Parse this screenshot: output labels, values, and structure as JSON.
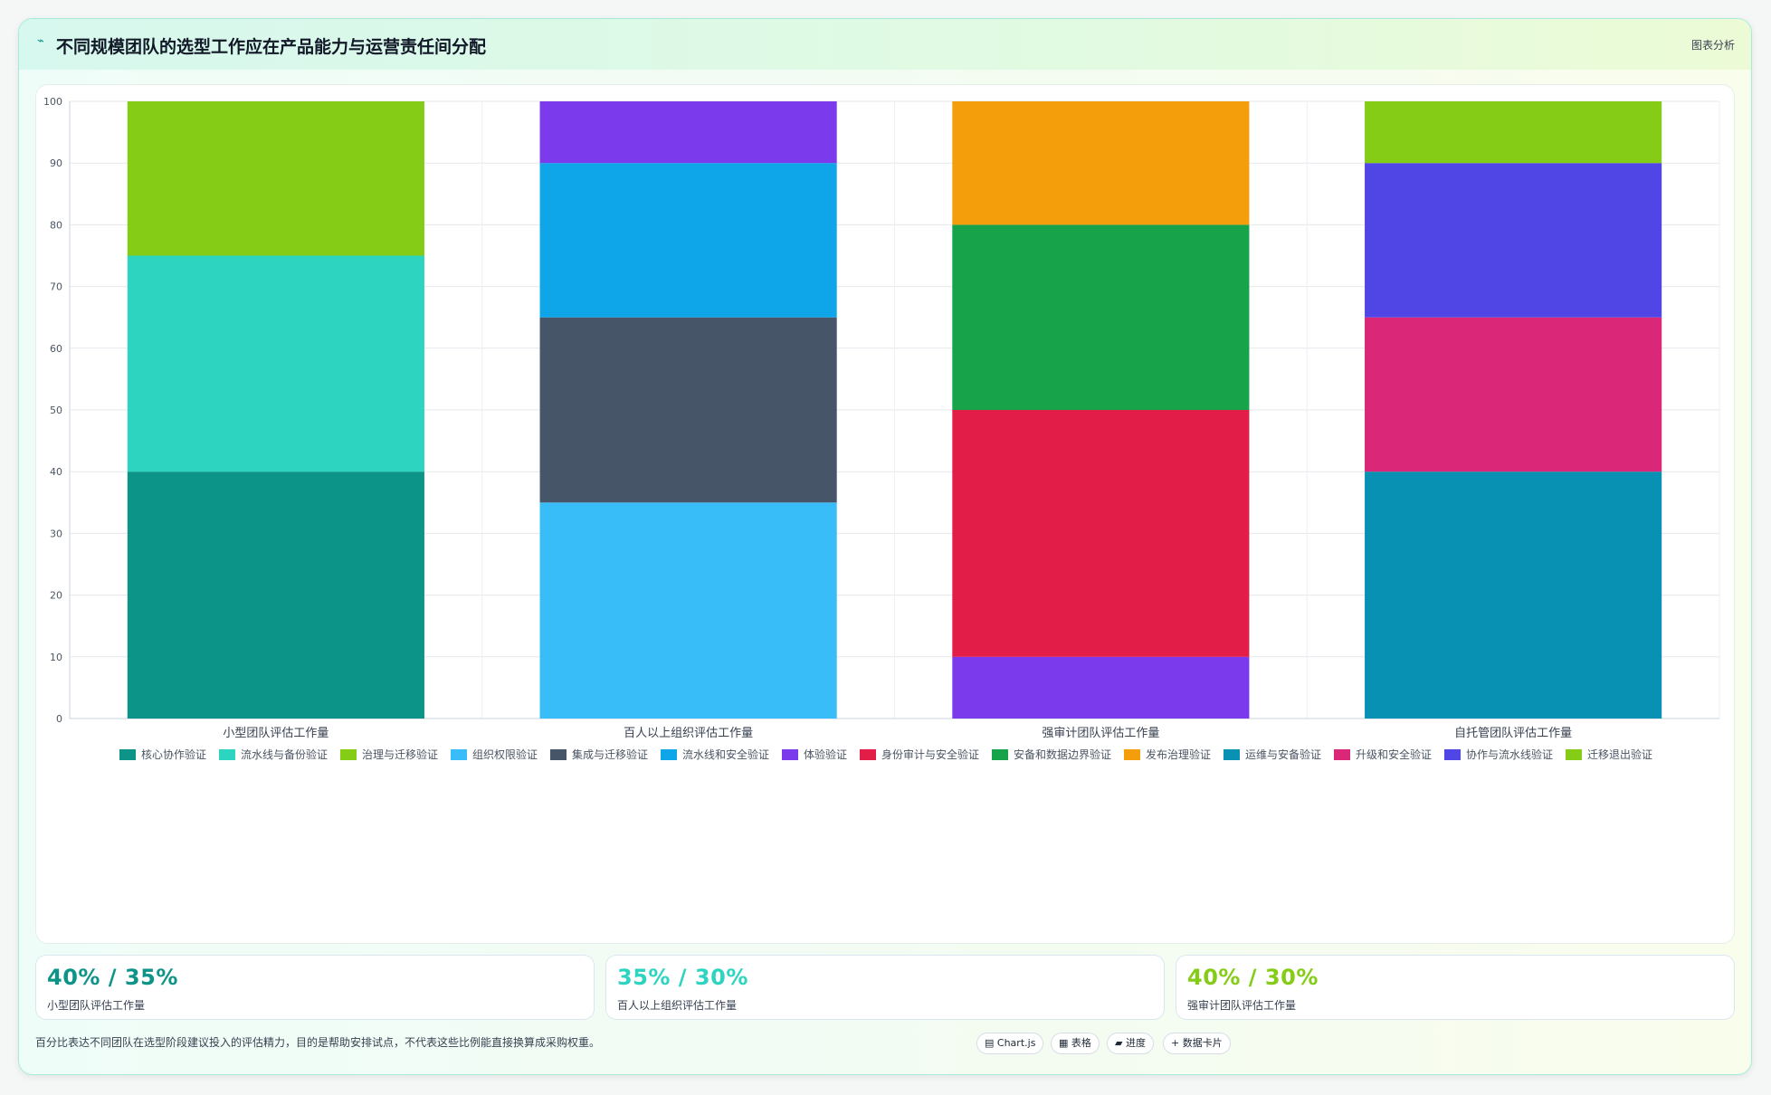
{
  "header": {
    "title": "不同规模团队的选型工作应在产品能力与运营责任间分配",
    "title_icon": "chart-line-icon",
    "link_label": "图表分析"
  },
  "chart_data": {
    "type": "bar",
    "stacked": true,
    "categories": [
      "小型团队评估工作量",
      "百人以上组织评估工作量",
      "强审计团队评估工作量",
      "自托管团队评估工作量"
    ],
    "ylim": [
      0,
      100
    ],
    "yticks": [
      0,
      10,
      20,
      30,
      40,
      50,
      60,
      70,
      80,
      90,
      100
    ],
    "grid": true,
    "legend_position": "bottom",
    "series": [
      {
        "name": "核心协作验证",
        "color": "#0d9488",
        "values": [
          40,
          0,
          0,
          0
        ]
      },
      {
        "name": "流水线与备份验证",
        "color": "#2dd4bf",
        "values": [
          35,
          0,
          0,
          0
        ]
      },
      {
        "name": "治理与迁移验证",
        "color": "#84cc16",
        "values": [
          25,
          0,
          0,
          0
        ]
      },
      {
        "name": "组织权限验证",
        "color": "#38bdf8",
        "values": [
          0,
          35,
          0,
          0
        ]
      },
      {
        "name": "集成与迁移验证",
        "color": "#475569",
        "values": [
          0,
          30,
          0,
          0
        ]
      },
      {
        "name": "流水线和安全验证",
        "color": "#0ea5e9",
        "values": [
          0,
          25,
          0,
          0
        ]
      },
      {
        "name": "体验验证",
        "color": "#7c3aed",
        "values": [
          0,
          10,
          10,
          0
        ]
      },
      {
        "name": "身份审计与安全验证",
        "color": "#e11d48",
        "values": [
          0,
          0,
          40,
          0
        ]
      },
      {
        "name": "安备和数据边界验证",
        "color": "#16a34a",
        "values": [
          0,
          0,
          30,
          0
        ]
      },
      {
        "name": "发布治理验证",
        "color": "#f59e0b",
        "values": [
          0,
          0,
          20,
          0
        ]
      },
      {
        "name": "运维与安备验证",
        "color": "#0891b2",
        "values": [
          0,
          0,
          0,
          40
        ]
      },
      {
        "name": "升级和安全验证",
        "color": "#db2777",
        "values": [
          0,
          0,
          0,
          25
        ]
      },
      {
        "name": "协作与流水线验证",
        "color": "#4f46e5",
        "values": [
          0,
          0,
          0,
          25
        ]
      },
      {
        "name": "迁移退出验证",
        "color": "#84cc16",
        "values": [
          0,
          0,
          0,
          10
        ]
      }
    ]
  },
  "stats": [
    {
      "value": "40% / 35%",
      "label": "小型团队评估工作量",
      "color": "#0d9488"
    },
    {
      "value": "35% / 30%",
      "label": "百人以上组织评估工作量",
      "color": "#2dd4bf"
    },
    {
      "value": "40% / 30%",
      "label": "强审计团队评估工作量",
      "color": "#84cc16"
    }
  ],
  "footer": {
    "note": "百分比表达不同团队在选型阶段建议投入的评估精力，目的是帮助安排试点，不代表这些比例能直接换算成采购权重。",
    "buttons": [
      {
        "icon": "chart-icon",
        "glyph": "▤",
        "label": "Chart.js"
      },
      {
        "icon": "table-icon",
        "glyph": "▦",
        "label": "表格"
      },
      {
        "icon": "progress-icon",
        "glyph": "▰",
        "label": "进度"
      },
      {
        "icon": "plus-icon",
        "glyph": "+",
        "label": "数据卡片"
      }
    ]
  }
}
